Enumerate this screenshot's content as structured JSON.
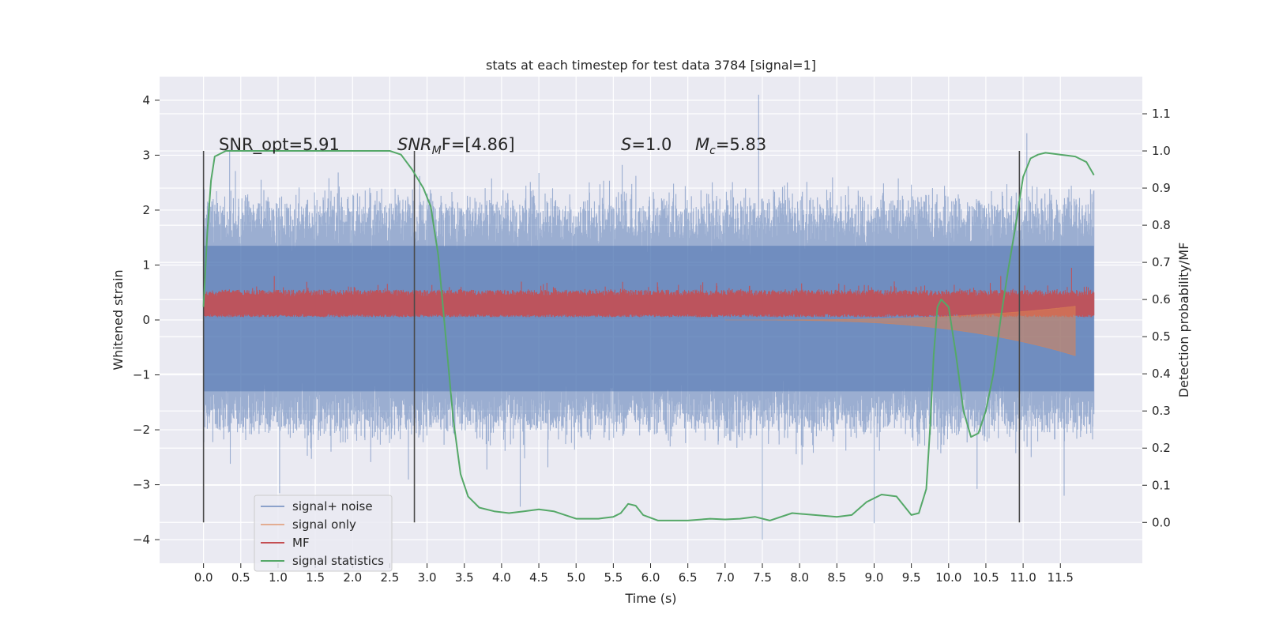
{
  "chart_data": {
    "type": "line",
    "title": "stats at each timestep for test data 3784 [signal=1]",
    "xlabel": "Time (s)",
    "ylabel": "Whitened strain",
    "y2label": "Detection probability/MF",
    "xlim": [
      -0.59,
      12.6
    ],
    "ylim": [
      -4.43,
      4.43
    ],
    "y2lim": [
      -0.11,
      1.2
    ],
    "x_ticks": [
      "0.0",
      "0.5",
      "1.0",
      "1.5",
      "2.0",
      "2.5",
      "3.0",
      "3.5",
      "4.0",
      "4.5",
      "5.0",
      "5.5",
      "6.0",
      "6.5",
      "7.0",
      "7.5",
      "8.0",
      "8.5",
      "9.0",
      "9.5",
      "10.0",
      "10.5",
      "11.0",
      "11.5"
    ],
    "y_ticks": [
      "4",
      "3",
      "2",
      "1",
      "0",
      "−1",
      "−2",
      "−3",
      "−4"
    ],
    "y2_ticks": [
      "1.1",
      "1.0",
      "0.9",
      "0.8",
      "0.7",
      "0.6",
      "0.5",
      "0.4",
      "0.3",
      "0.2",
      "0.1",
      "0.0"
    ],
    "grid": true,
    "legend_position": "lower-left",
    "annotations": {
      "snr_opt": "SNR_opt=5.91",
      "snr_mf_base": "SNR",
      "snr_mf_sub": "M",
      "snr_mf_rest": "F=[4.86]",
      "s_var": "S",
      "s_rest": "=1.0",
      "mc_var": "M",
      "mc_sub": "c",
      "mc_rest": "=5.83"
    },
    "vertical_lines_x": [
      0.0,
      2.83,
      10.95
    ],
    "series": [
      {
        "name": "signal+ noise",
        "color": "#4c72b0",
        "axis": "left",
        "kind": "noise",
        "x_range": [
          0.0,
          11.95
        ],
        "envelope_core": [
          -1.3,
          1.35
        ],
        "envelope_typical": [
          -2.3,
          2.5
        ],
        "peaks": [
          [
            7.45,
            4.1
          ],
          [
            11.05,
            3.4
          ],
          [
            7.5,
            -4.0
          ],
          [
            4.25,
            -3.4
          ],
          [
            9.0,
            -3.7
          ],
          [
            0.35,
            3.1
          ],
          [
            11.55,
            -3.2
          ]
        ]
      },
      {
        "name": "signal only",
        "color": "#dd8452",
        "axis": "left",
        "kind": "chirp",
        "x_range": [
          7.0,
          11.7
        ],
        "amplitude_end": [
          0.25,
          -0.65
        ]
      },
      {
        "name": "MF",
        "color": "#c44e52",
        "axis": "left",
        "kind": "band",
        "x_range": [
          0.0,
          11.95
        ],
        "band": [
          0.05,
          0.55
        ],
        "spikes": [
          [
            10.7,
            0.8
          ],
          [
            11.65,
            0.95
          ],
          [
            0.95,
            0.8
          ]
        ]
      },
      {
        "name": "signal statistics",
        "color": "#55a868",
        "axis": "right",
        "kind": "curve",
        "x": [
          0.0,
          0.05,
          0.1,
          0.15,
          0.3,
          0.6,
          1.0,
          1.5,
          2.0,
          2.5,
          2.65,
          2.8,
          2.95,
          3.05,
          3.15,
          3.25,
          3.35,
          3.45,
          3.55,
          3.7,
          3.9,
          4.1,
          4.3,
          4.5,
          4.7,
          5.0,
          5.3,
          5.5,
          5.6,
          5.7,
          5.8,
          5.9,
          6.1,
          6.5,
          6.8,
          7.0,
          7.2,
          7.4,
          7.6,
          7.9,
          8.2,
          8.5,
          8.7,
          8.9,
          9.1,
          9.3,
          9.5,
          9.6,
          9.7,
          9.75,
          9.8,
          9.85,
          9.9,
          10.0,
          10.1,
          10.2,
          10.3,
          10.4,
          10.5,
          10.6,
          10.7,
          10.8,
          10.9,
          11.0,
          11.1,
          11.2,
          11.3,
          11.5,
          11.7,
          11.85,
          11.95
        ],
        "y": [
          0.58,
          0.78,
          0.92,
          0.985,
          1.0,
          1.0,
          1.0,
          1.0,
          1.0,
          1.0,
          0.99,
          0.95,
          0.9,
          0.85,
          0.72,
          0.5,
          0.28,
          0.13,
          0.07,
          0.04,
          0.03,
          0.025,
          0.03,
          0.035,
          0.03,
          0.01,
          0.01,
          0.015,
          0.025,
          0.05,
          0.045,
          0.02,
          0.005,
          0.005,
          0.01,
          0.008,
          0.01,
          0.015,
          0.005,
          0.025,
          0.02,
          0.015,
          0.02,
          0.055,
          0.075,
          0.07,
          0.02,
          0.025,
          0.09,
          0.25,
          0.45,
          0.58,
          0.6,
          0.58,
          0.45,
          0.3,
          0.23,
          0.24,
          0.3,
          0.4,
          0.55,
          0.68,
          0.8,
          0.93,
          0.98,
          0.99,
          0.995,
          0.99,
          0.985,
          0.97,
          0.935
        ]
      }
    ]
  }
}
